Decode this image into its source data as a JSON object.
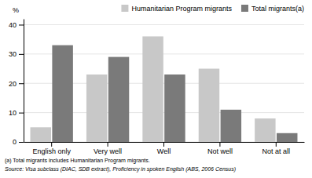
{
  "chart_data": {
    "type": "bar",
    "categories": [
      "English only",
      "Very well",
      "Well",
      "Not well",
      "Not at all"
    ],
    "series": [
      {
        "name": "Humanitarian Program migrants",
        "color": "#c8c8c8",
        "values": [
          5,
          23,
          36,
          25,
          8
        ]
      },
      {
        "name": "Total migrants(a)",
        "color": "#7a7a7a",
        "values": [
          33,
          29,
          23,
          11,
          3
        ]
      }
    ],
    "ylabel": "%",
    "ylim": [
      0,
      42
    ],
    "yticks": [
      0,
      10,
      20,
      30,
      40
    ],
    "grid": true,
    "legend": "upper right",
    "annotations": [
      "(a) Total migrants includes Humanitarian Program migrants.",
      "Source: Visa subclass (DIAC, SDB extract), Proficiency in spoken English (ABS, 2006 Census)"
    ]
  }
}
